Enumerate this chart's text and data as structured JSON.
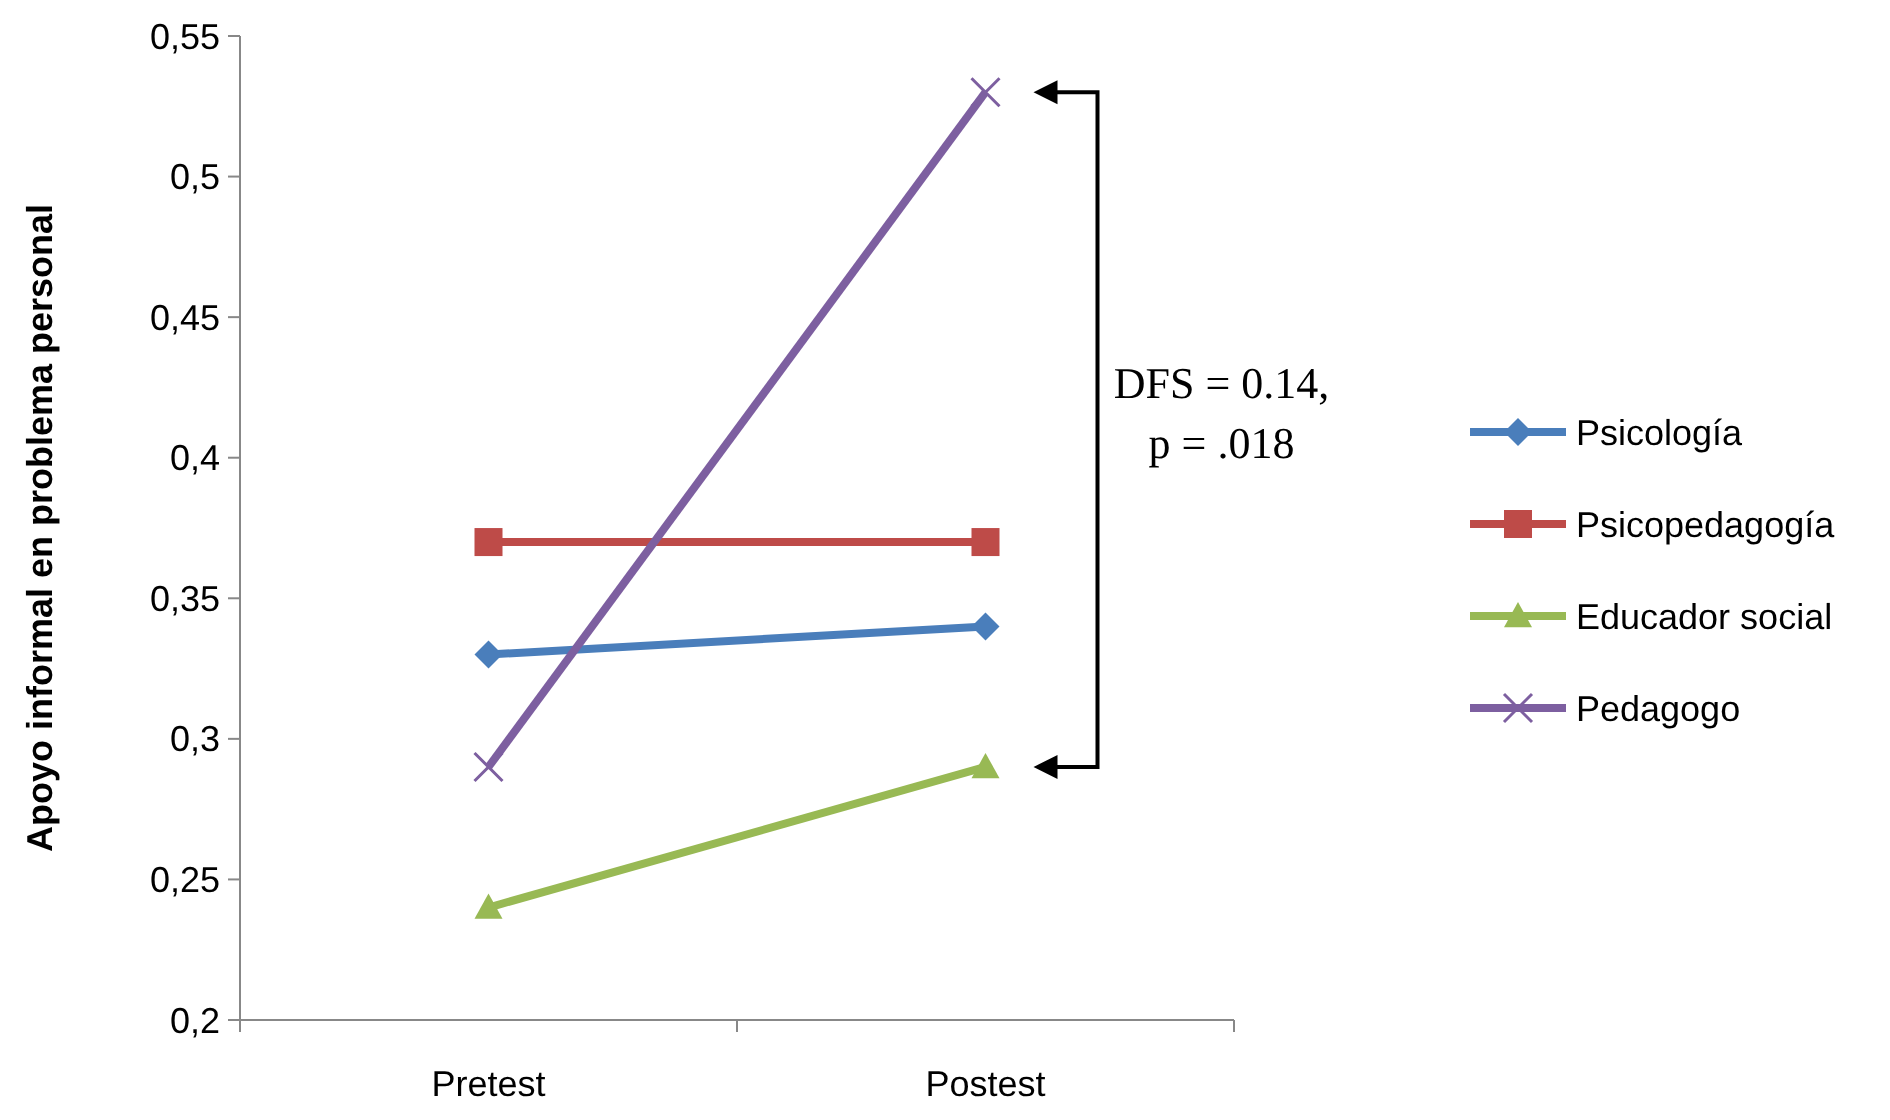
{
  "chart_data": {
    "type": "line",
    "ylabel": "Apoyo informal en problema personal",
    "categories": [
      "Pretest",
      "Postest"
    ],
    "series": [
      {
        "name": "Psicología",
        "color": "#4a7ebb",
        "marker": "diamond",
        "values": [
          0.33,
          0.34
        ]
      },
      {
        "name": "Psicopedagogía",
        "color": "#be4b48",
        "marker": "square",
        "values": [
          0.37,
          0.37
        ]
      },
      {
        "name": "Educador social",
        "color": "#98b954",
        "marker": "triangle",
        "values": [
          0.24,
          0.29
        ]
      },
      {
        "name": "Pedagogo",
        "color": "#7d5fa0",
        "marker": "cross",
        "values": [
          0.29,
          0.53
        ]
      }
    ],
    "ylim": [
      0.2,
      0.55
    ],
    "yticks": [
      {
        "value": 0.2,
        "label": "0,2"
      },
      {
        "value": 0.25,
        "label": "0,25"
      },
      {
        "value": 0.3,
        "label": "0,3"
      },
      {
        "value": 0.35,
        "label": "0,35"
      },
      {
        "value": 0.4,
        "label": "0,4"
      },
      {
        "value": 0.45,
        "label": "0,45"
      },
      {
        "value": 0.5,
        "label": "0,5"
      },
      {
        "value": 0.55,
        "label": "0,55"
      }
    ],
    "grid": false,
    "legend": "right",
    "line_style": "solid",
    "annotations": [
      "DFS = 0.14,\np = .018"
    ]
  }
}
